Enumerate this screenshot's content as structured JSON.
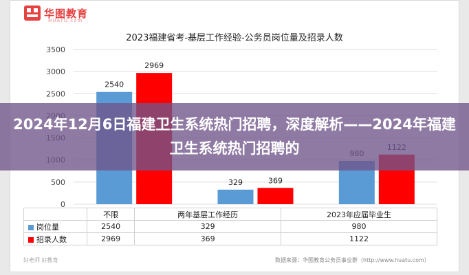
{
  "logo": {
    "brand": "华图教育",
    "sub": "HUATU.com"
  },
  "chart_data": {
    "type": "bar",
    "title": "2023福建省考-基层工作经验-公务员岗位量及招录人数",
    "categories": [
      "不限",
      "两年基层工作经历",
      "2023年应届毕业生"
    ],
    "series": [
      {
        "name": "岗位量",
        "values": [
          2540,
          329,
          980
        ],
        "color": "#5b9bd5"
      },
      {
        "name": "招录人数",
        "values": [
          2969,
          369,
          1122
        ],
        "color": "#ff0000"
      }
    ],
    "ylim": [
      0,
      3500
    ],
    "yticks": [
      "0",
      "500",
      "1000",
      "1500",
      "2000",
      "2500",
      "3000",
      "3500"
    ],
    "grid": true,
    "legend": "table-below"
  },
  "banner": {
    "text": "2024年12月6日福建卫生系统热门招聘，深度解析——2024年福建卫生系统热门招聘的"
  },
  "footer": {
    "left": "好老师 好教育",
    "right": "数据来源：华图教育公务员事业群（http://www.huatu.com）"
  }
}
